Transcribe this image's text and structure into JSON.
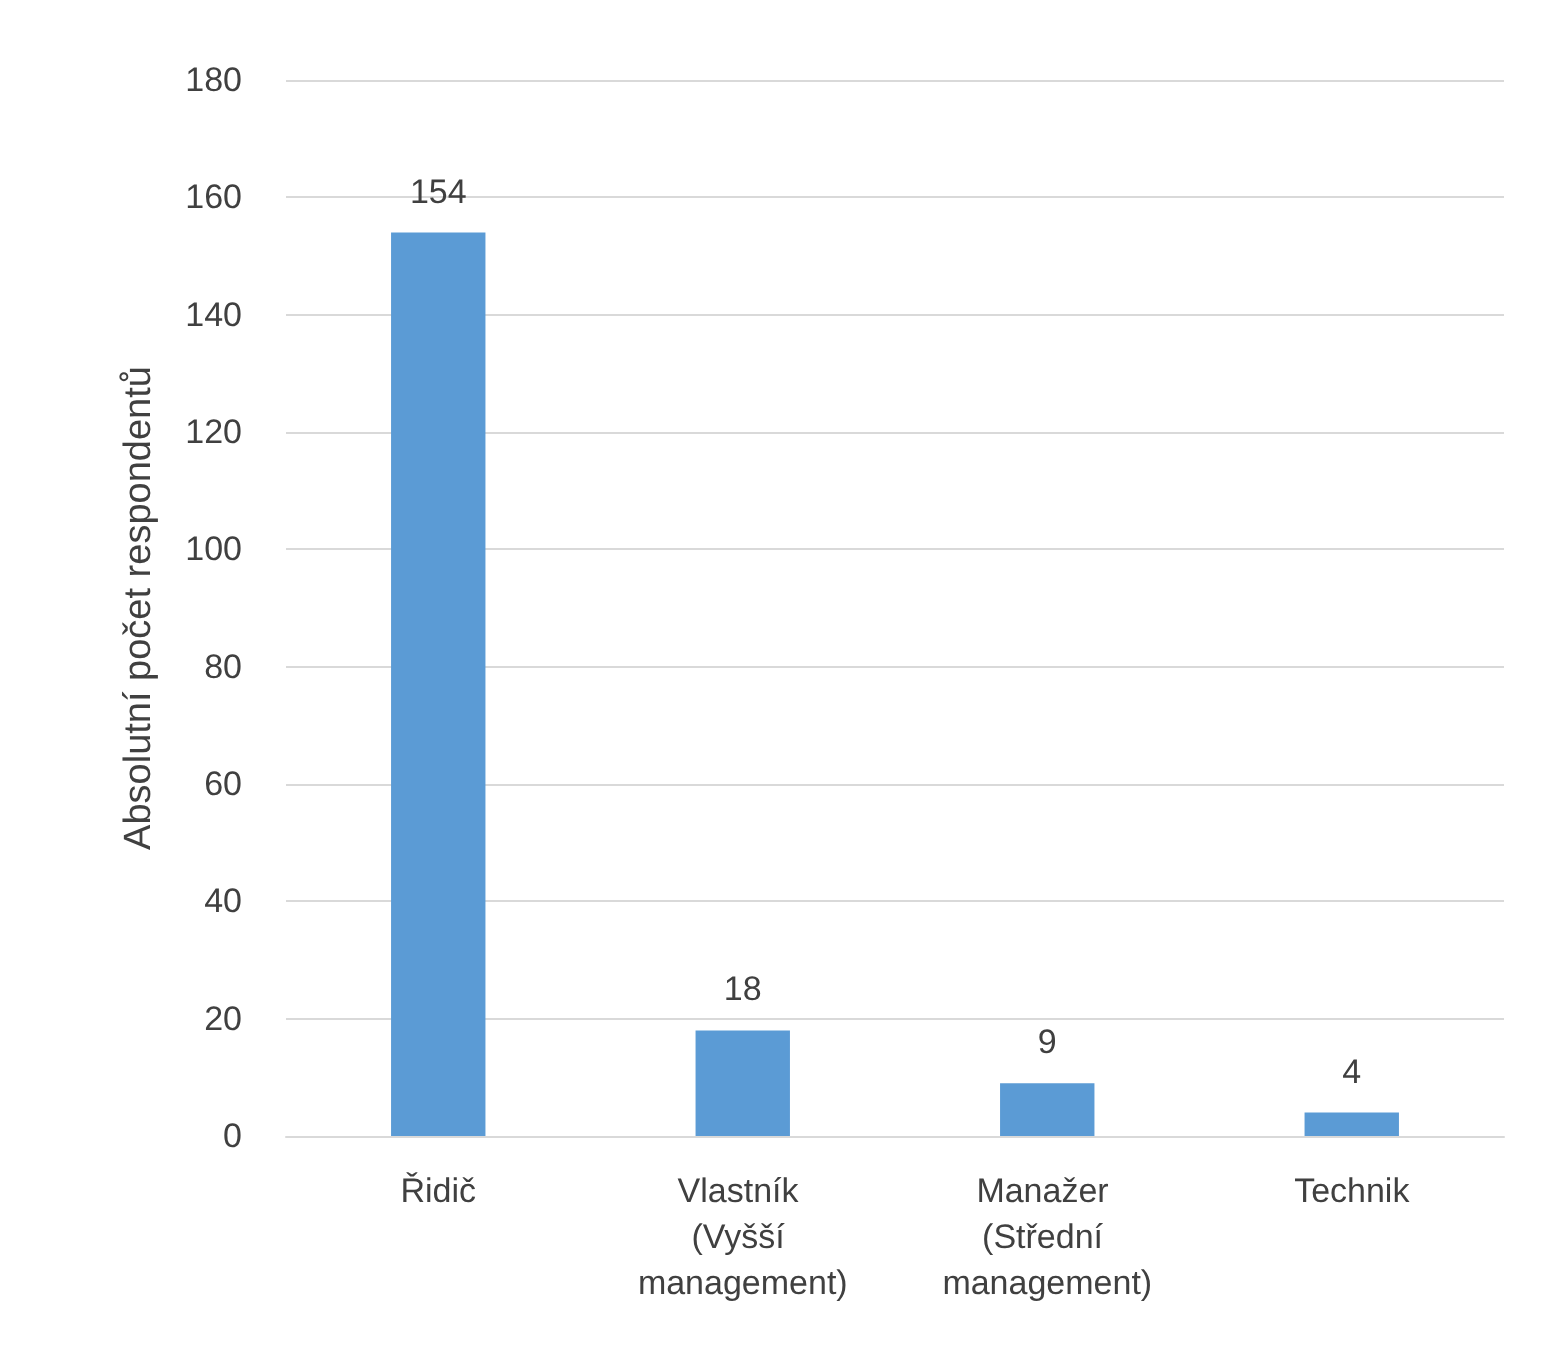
{
  "chart_data": {
    "type": "bar",
    "ylabel": "Absolutní počet respondentů",
    "categories": [
      "Řidič",
      "Vlastník (Vyšší management)",
      "Manažer (Střední management)",
      "Technik"
    ],
    "values": [
      154,
      18,
      9,
      4
    ],
    "color": "#5b9bd5",
    "data_labels": true,
    "ylim": [
      0,
      180
    ],
    "yticks": [
      0,
      20,
      40,
      60,
      80,
      100,
      120,
      140,
      160,
      180
    ],
    "grid": "y"
  }
}
